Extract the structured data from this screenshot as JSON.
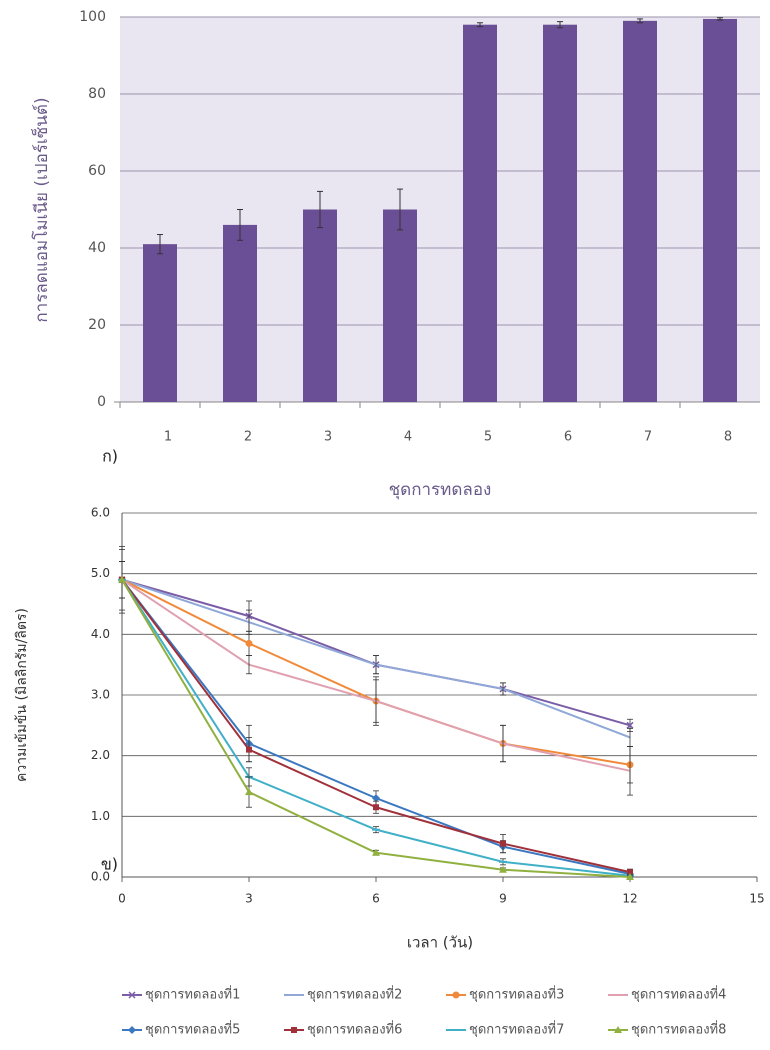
{
  "chart_data": [
    {
      "type": "bar",
      "panel_label": "ก)",
      "x_label": "ชุดการทดลอง",
      "y_label": "การลดแอมโมเนีย (เปอร์เซ็นต์)",
      "categories": [
        "1",
        "2",
        "3",
        "4",
        "5",
        "6",
        "7",
        "8"
      ],
      "values": [
        41,
        46,
        50,
        50,
        98,
        98,
        99,
        99.5
      ],
      "errors": [
        2.5,
        4,
        4.7,
        5.3,
        0.5,
        0.8,
        0.5,
        0.3
      ],
      "color": "#6a4f96",
      "background": "#e9e5f1",
      "ylim": [
        0,
        100
      ],
      "yticks": [
        0,
        20,
        40,
        60,
        80,
        100
      ],
      "grid": true
    },
    {
      "type": "line",
      "panel_label": "ข)",
      "x_label": "เวลา (วัน)",
      "y_label": "ความเข้มข้น (มิลลิกรัม/ลิตร)",
      "x": [
        0,
        3,
        6,
        9,
        12
      ],
      "xlim": [
        0,
        15
      ],
      "xticks": [
        0,
        3,
        6,
        9,
        12,
        15
      ],
      "ylim": [
        0,
        6
      ],
      "yticks": [
        {
          "value": 0,
          "label": "0.0"
        },
        {
          "value": 1,
          "label": "1.0"
        },
        {
          "value": 2,
          "label": "2.0"
        },
        {
          "value": 3,
          "label": "3.0"
        },
        {
          "value": 4,
          "label": "4.0"
        },
        {
          "value": 5,
          "label": "5.0"
        },
        {
          "value": 6,
          "label": "6.0"
        }
      ],
      "grid": true,
      "legend": "bottom",
      "series": [
        {
          "name": "ชุดการทดลองที่1",
          "color": "#7b5ea7",
          "marker": "x",
          "values": [
            4.9,
            4.3,
            3.5,
            3.1,
            2.5
          ],
          "errors": [
            0.55,
            0.25,
            0.15,
            0.1,
            0.1
          ]
        },
        {
          "name": "ชุดการทดลองที่2",
          "color": "#8fa8d8",
          "marker": "none",
          "values": [
            4.9,
            4.2,
            3.5,
            3.1,
            2.3
          ],
          "errors": [
            0.5,
            0.2,
            0.15,
            0.1,
            0.15
          ]
        },
        {
          "name": "ชุดการทดลองที่3",
          "color": "#f08a3a",
          "marker": "circle",
          "values": [
            4.9,
            3.85,
            2.9,
            2.2,
            1.85
          ],
          "errors": [
            0.3,
            0.2,
            0.35,
            0.3,
            0.3
          ]
        },
        {
          "name": "ชุดการทดลองที่4",
          "color": "#e0a0b0",
          "marker": "none",
          "values": [
            4.9,
            3.5,
            2.9,
            2.2,
            1.75
          ],
          "errors": [
            0.3,
            0.15,
            0.4,
            0.3,
            0.4
          ]
        },
        {
          "name": "ชุดการทดลองที่5",
          "color": "#3a78c0",
          "marker": "diamond",
          "values": [
            4.9,
            2.2,
            1.3,
            0.5,
            0.05
          ],
          "errors": [
            0.3,
            0.3,
            0.12,
            0.1,
            0.05
          ]
        },
        {
          "name": "ชุดการทดลองที่6",
          "color": "#a0303a",
          "marker": "square",
          "values": [
            4.9,
            2.1,
            1.15,
            0.55,
            0.08
          ],
          "errors": [
            0.3,
            0.2,
            0.1,
            0.15,
            0.05
          ]
        },
        {
          "name": "ชุดการทดลองที่7",
          "color": "#40b0c8",
          "marker": "dash",
          "values": [
            4.9,
            1.65,
            0.78,
            0.25,
            0.02
          ],
          "errors": [
            0.3,
            0.15,
            0.05,
            0.05,
            0.02
          ]
        },
        {
          "name": "ชุดการทดลองที่8",
          "color": "#90b040",
          "marker": "triangle",
          "values": [
            4.9,
            1.4,
            0.4,
            0.12,
            0.0
          ],
          "errors": [
            0.3,
            0.25,
            0.04,
            0.03,
            0.02
          ]
        }
      ]
    }
  ]
}
